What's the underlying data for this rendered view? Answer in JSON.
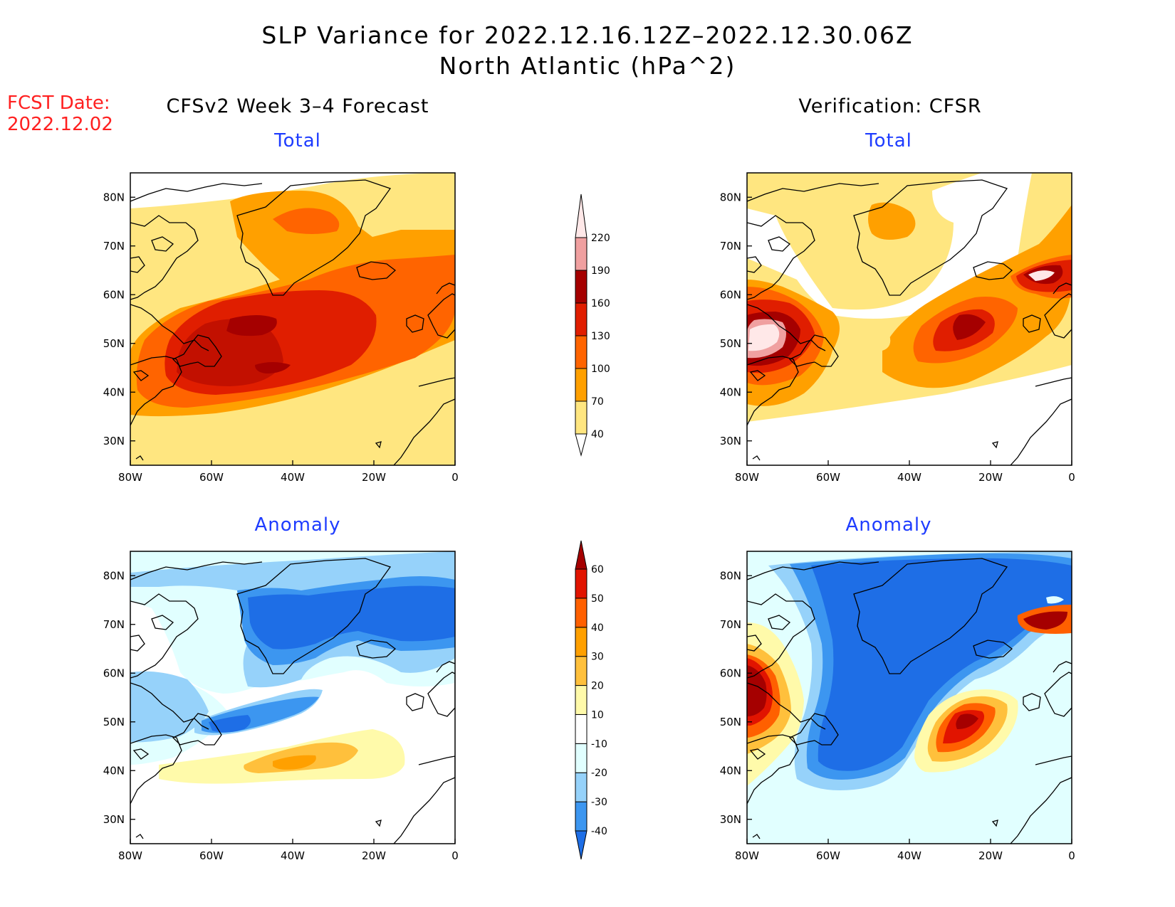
{
  "header": {
    "title": "SLP Variance for 2022.12.16.12Z–2022.12.30.06Z",
    "subtitle": "North Atlantic (hPa^2)",
    "fcst_label": "FCST Date:",
    "fcst_date": "2022.12.02"
  },
  "columns": {
    "left": "CFSv2 Week 3–4 Forecast",
    "right": "Verification: CFSR"
  },
  "panels": {
    "top_left": "Total",
    "top_right": "Total",
    "bottom_left": "Anomaly",
    "bottom_right": "Anomaly"
  },
  "axes": {
    "lat_ticks": [
      "30N",
      "40N",
      "50N",
      "60N",
      "70N",
      "80N"
    ],
    "lon_ticks": [
      "80W",
      "60W",
      "40W",
      "20W",
      "0"
    ]
  },
  "colorbars": {
    "total": {
      "levels": [
        "40",
        "70",
        "100",
        "130",
        "160",
        "190",
        "220"
      ],
      "colors": [
        "#ffe680",
        "#ffa000",
        "#ff6400",
        "#e01e00",
        "#a50000",
        "#f0a0a0",
        "#ffe8e8"
      ]
    },
    "anomaly": {
      "levels": [
        "-40",
        "-30",
        "-20",
        "-10",
        "10",
        "20",
        "30",
        "40",
        "50",
        "60"
      ],
      "colors": [
        "#1e6ee6",
        "#3c96f0",
        "#96d2fa",
        "#e1ffff",
        "#ffffff",
        "#fffaaa",
        "#ffc03c",
        "#ffa000",
        "#ff6000",
        "#e11400",
        "#a50000"
      ]
    }
  }
}
